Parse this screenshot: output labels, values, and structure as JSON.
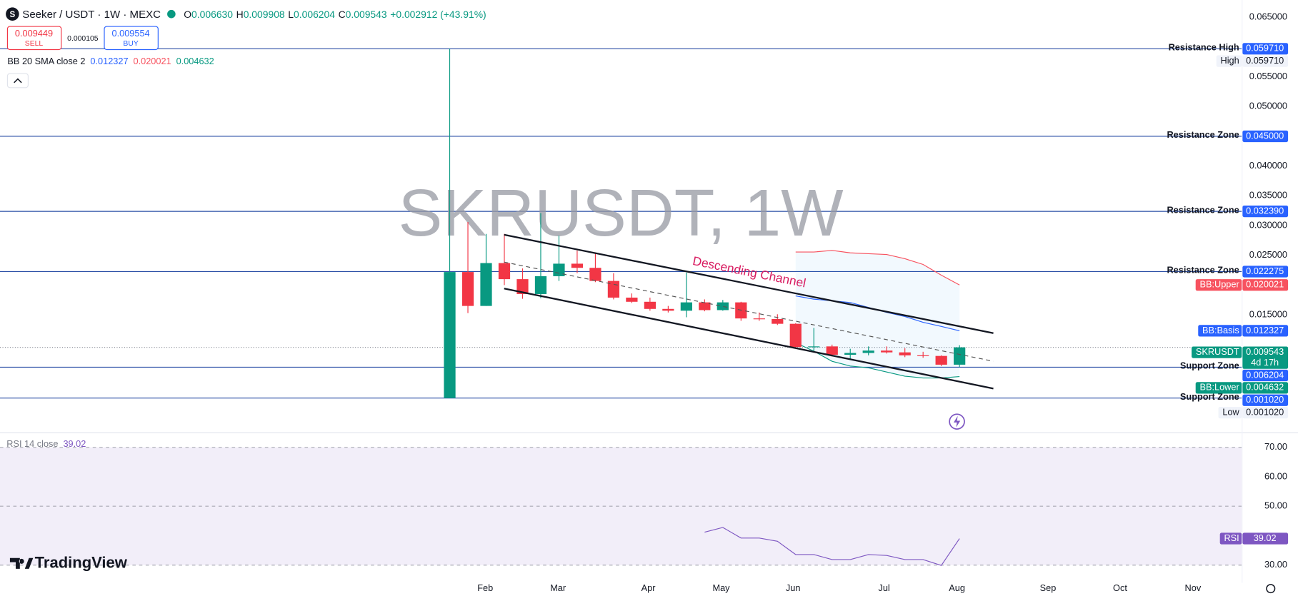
{
  "header": {
    "symbol": "Seeker / USDT · 1W · MEXC",
    "ohlc": [
      {
        "key": "O",
        "value": "0.006630"
      },
      {
        "key": "H",
        "value": "0.009908"
      },
      {
        "key": "L",
        "value": "0.006204"
      },
      {
        "key": "C",
        "value": "0.009543"
      }
    ],
    "change": "+0.002912 (+43.91%)",
    "sell": {
      "price": "0.009449",
      "label": "SELL"
    },
    "spread": "0.000105",
    "buy": {
      "price": "0.009554",
      "label": "BUY"
    }
  },
  "branding": "TradingView",
  "chart_data": [
    {
      "type": "candlestick",
      "watermark": "SKRUSDT, 1W",
      "indicator": "BB 20 SMA close 2",
      "annotation": "Descending Channel",
      "x": [
        0,
        1,
        2,
        3,
        4,
        5,
        6,
        7,
        8,
        9,
        10,
        11,
        12,
        13,
        14,
        15,
        16,
        17,
        18,
        19,
        20,
        21,
        22,
        23,
        24,
        25,
        26,
        27,
        28
      ],
      "open": [
        0.00102,
        0.0222,
        0.0165,
        0.0237,
        0.021,
        0.0185,
        0.0215,
        0.0236,
        0.0229,
        0.0207,
        0.0179,
        0.0172,
        0.016,
        0.0157,
        0.0171,
        0.0158,
        0.0171,
        0.0144,
        0.0143,
        0.0135,
        0.0096,
        0.0097,
        0.0083,
        0.0086,
        0.009,
        0.0087,
        0.0082,
        0.0081,
        0.00663
      ],
      "high": [
        0.05971,
        0.0306,
        0.0286,
        0.0286,
        0.0228,
        0.0321,
        0.0283,
        0.0258,
        0.0253,
        0.022,
        0.0186,
        0.0179,
        0.0165,
        0.0221,
        0.0176,
        0.0175,
        0.0172,
        0.0154,
        0.0151,
        0.0136,
        0.0128,
        0.01,
        0.0093,
        0.0097,
        0.0097,
        0.0094,
        0.0088,
        0.0082,
        0.009908
      ],
      "low": [
        0.00102,
        0.0153,
        0.0165,
        0.02,
        0.0177,
        0.0178,
        0.0207,
        0.022,
        0.0205,
        0.0176,
        0.017,
        0.0157,
        0.0154,
        0.0146,
        0.0156,
        0.0157,
        0.014,
        0.014,
        0.0133,
        0.0094,
        0.0089,
        0.008,
        0.0076,
        0.0082,
        0.0085,
        0.0079,
        0.0078,
        0.0064,
        0.006204
      ],
      "close": [
        0.0222,
        0.0165,
        0.0237,
        0.021,
        0.0185,
        0.0215,
        0.0236,
        0.0229,
        0.0207,
        0.0179,
        0.0172,
        0.016,
        0.0157,
        0.0171,
        0.0158,
        0.0171,
        0.0144,
        0.0143,
        0.0135,
        0.0096,
        0.0097,
        0.0083,
        0.0086,
        0.009,
        0.0087,
        0.0082,
        0.0081,
        0.00663,
        0.009543
      ],
      "up_color": "#089981",
      "down_color": "#f23645",
      "xlim": [
        -24.7,
        43.5
      ],
      "ylim": [
        -0.0046,
        0.0679
      ],
      "yticks": [
        {
          "value": 0.065,
          "label": "0.065000"
        },
        {
          "value": 0.055,
          "label": "0.055000"
        },
        {
          "value": 0.05,
          "label": "0.050000"
        },
        {
          "value": 0.04,
          "label": "0.040000"
        },
        {
          "value": 0.035,
          "label": "0.035000"
        },
        {
          "value": 0.03,
          "label": "0.030000"
        },
        {
          "value": 0.025,
          "label": "0.025000"
        },
        {
          "value": 0.015,
          "label": "0.015000"
        }
      ],
      "hline_color": "#2a4ea6",
      "hlines": [
        {
          "label": "Resistance High",
          "value": 0.05971,
          "value_label": "0.059710"
        },
        {
          "label": "Resistance Zone",
          "value": 0.045,
          "value_label": "0.045000"
        },
        {
          "label": "Resistance Zone",
          "value": 0.03239,
          "value_label": "0.032390"
        },
        {
          "label": "Resistance Zone",
          "value": 0.022275,
          "value_label": "0.022275"
        },
        {
          "label": "Support Zone",
          "value": 0.006204,
          "value_label": "0.006204"
        },
        {
          "label": "Support Zone",
          "value": 0.00102,
          "value_label": "0.001020"
        }
      ],
      "series": [
        {
          "name": "BB:Upper",
          "color": "#f7525f",
          "last_label": "0.020021",
          "values": [
            null,
            null,
            null,
            null,
            null,
            null,
            null,
            null,
            null,
            null,
            null,
            null,
            null,
            null,
            null,
            null,
            null,
            null,
            null,
            0.02556,
            0.02556,
            0.02583,
            0.02542,
            0.02528,
            0.02514,
            0.02444,
            0.02347,
            0.02167,
            0.020021
          ]
        },
        {
          "name": "BB:Basis",
          "color": "#2962ff",
          "last_label": "0.012327",
          "values": [
            null,
            null,
            null,
            null,
            null,
            null,
            null,
            null,
            null,
            null,
            null,
            null,
            null,
            null,
            null,
            null,
            null,
            null,
            null,
            0.01819,
            0.01764,
            0.01736,
            0.01708,
            0.01625,
            0.01542,
            0.01472,
            0.01375,
            0.01306,
            0.012327
          ]
        },
        {
          "name": "BB:Lower",
          "color": "#089981",
          "last_label": "0.004632",
          "values": [
            null,
            null,
            null,
            null,
            null,
            null,
            null,
            null,
            null,
            null,
            null,
            null,
            null,
            null,
            null,
            null,
            null,
            null,
            null,
            0.0103,
            0.0089,
            0.0072,
            0.0064,
            0.0061,
            0.0054,
            0.0047,
            0.0044,
            0.0044,
            0.004632
          ]
        }
      ],
      "band_fill": "#2196f3",
      "last_price": {
        "name": "SKRUSDT",
        "label": "0.009543",
        "countdown": "4d 17h"
      },
      "high_tag": {
        "name": "High",
        "label": "0.059710"
      },
      "low_tag": {
        "name": "Low",
        "label": "0.001020"
      }
    },
    {
      "type": "line",
      "title": "RSI 14 close",
      "x": [
        0,
        1,
        2,
        3,
        4,
        5,
        6,
        7,
        8,
        9,
        10,
        11,
        12,
        13,
        14,
        15,
        16,
        17,
        18,
        19,
        20,
        21,
        22,
        23,
        24,
        25,
        26,
        27,
        28
      ],
      "series": [
        {
          "name": "RSI",
          "color": "#7e57c2",
          "last_label": "39.02",
          "values": [
            null,
            null,
            null,
            null,
            null,
            null,
            null,
            null,
            null,
            null,
            null,
            null,
            null,
            null,
            41.2,
            42.8,
            39.2,
            39.2,
            38.1,
            33.6,
            33.6,
            31.9,
            31.9,
            33.6,
            33.3,
            31.9,
            31.9,
            29.9,
            39.02
          ]
        }
      ],
      "xlim": [
        -24.7,
        43.5
      ],
      "xticks": [
        {
          "value": 1.95,
          "label": "Feb"
        },
        {
          "value": 5.95,
          "label": "Mar"
        },
        {
          "value": 10.91,
          "label": "Apr"
        },
        {
          "value": 14.91,
          "label": "May"
        },
        {
          "value": 18.86,
          "label": "Jun"
        },
        {
          "value": 23.86,
          "label": "Jul"
        },
        {
          "value": 27.86,
          "label": "Aug"
        },
        {
          "value": 32.86,
          "label": "Sep"
        },
        {
          "value": 36.82,
          "label": "Oct"
        },
        {
          "value": 40.82,
          "label": "Nov"
        }
      ],
      "ylim": [
        24,
        74.8
      ],
      "yticks": [
        {
          "value": 70,
          "label": "70.00"
        },
        {
          "value": 60,
          "label": "60.00"
        },
        {
          "value": 50,
          "label": "50.00"
        },
        {
          "value": 30,
          "label": "30.00"
        }
      ],
      "band": [
        30,
        70
      ],
      "band_color": "#7e57c2",
      "midline": 50
    }
  ]
}
